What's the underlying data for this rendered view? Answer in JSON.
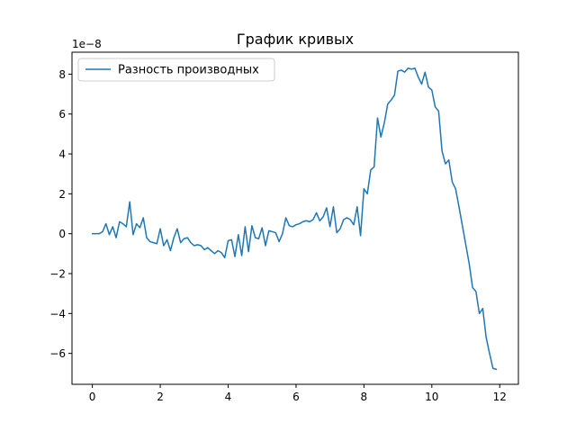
{
  "chart_data": {
    "type": "line",
    "title": "График кривых",
    "xlabel": "",
    "ylabel": "",
    "y_offset_label": "1e−8",
    "xlim": [
      -0.6,
      12.55
    ],
    "ylim": [
      -7.55,
      9.1
    ],
    "x_ticks": [
      0,
      2,
      4,
      6,
      8,
      10,
      12
    ],
    "x_tick_labels": [
      "0",
      "2",
      "4",
      "6",
      "8",
      "10",
      "12"
    ],
    "y_ticks": [
      -6,
      -4,
      -2,
      0,
      2,
      4,
      6,
      8
    ],
    "y_tick_labels": [
      "−6",
      "−4",
      "−2",
      "0",
      "2",
      "4",
      "6",
      "8"
    ],
    "grid": false,
    "legend_position": "upper-left",
    "series": [
      {
        "name": "Разность производных",
        "color": "#1f77b4",
        "x": [
          0,
          0.1,
          0.2,
          0.3,
          0.4,
          0.5,
          0.6,
          0.7,
          0.8,
          0.9,
          1.0,
          1.1,
          1.2,
          1.3,
          1.4,
          1.5,
          1.6,
          1.7,
          1.8,
          1.9,
          2.0,
          2.1,
          2.2,
          2.3,
          2.4,
          2.5,
          2.6,
          2.7,
          2.8,
          2.9,
          3.0,
          3.1,
          3.2,
          3.3,
          3.4,
          3.5,
          3.6,
          3.7,
          3.8,
          3.9,
          4.0,
          4.1,
          4.2,
          4.3,
          4.4,
          4.5,
          4.6,
          4.7,
          4.8,
          4.9,
          5.0,
          5.1,
          5.2,
          5.3,
          5.4,
          5.5,
          5.6,
          5.7,
          5.8,
          5.9,
          6.0,
          6.1,
          6.2,
          6.3,
          6.4,
          6.5,
          6.6,
          6.7,
          6.8,
          6.9,
          7.0,
          7.1,
          7.2,
          7.3,
          7.4,
          7.5,
          7.6,
          7.7,
          7.8,
          7.9,
          8.0,
          8.1,
          8.2,
          8.3,
          8.4,
          8.5,
          8.6,
          8.7,
          8.8,
          8.9,
          9.0,
          9.1,
          9.2,
          9.3,
          9.4,
          9.5,
          9.6,
          9.7,
          9.8,
          9.9,
          10.0,
          10.1,
          10.2,
          10.3,
          10.4,
          10.5,
          10.6,
          10.7,
          10.8,
          10.9,
          11.0,
          11.1,
          11.2,
          11.3,
          11.4,
          11.5,
          11.6,
          11.7,
          11.8,
          11.9
        ],
        "y": [
          0.0,
          0.0,
          0.0,
          0.1,
          0.5,
          -0.05,
          0.35,
          -0.2,
          0.6,
          0.5,
          0.35,
          1.6,
          -0.05,
          0.5,
          0.3,
          0.8,
          -0.2,
          -0.4,
          -0.45,
          -0.5,
          0.25,
          -0.6,
          -0.3,
          -0.85,
          -0.2,
          0.25,
          -0.45,
          -0.25,
          -0.2,
          -0.45,
          -0.6,
          -0.55,
          -0.6,
          -0.8,
          -0.7,
          -0.85,
          -1.0,
          -0.85,
          -0.95,
          -1.2,
          -0.35,
          -0.3,
          -1.15,
          -0.05,
          -1.1,
          0.35,
          -0.9,
          0.4,
          -0.2,
          -0.25,
          0.3,
          -0.6,
          0.15,
          0.1,
          0.05,
          -0.4,
          0.0,
          0.8,
          0.4,
          0.35,
          0.45,
          0.5,
          0.6,
          0.65,
          0.6,
          0.7,
          1.05,
          0.65,
          0.85,
          1.3,
          0.35,
          1.35,
          0.05,
          0.25,
          0.7,
          0.8,
          0.7,
          0.45,
          1.35,
          -0.1,
          2.25,
          2.0,
          3.2,
          3.35,
          5.8,
          4.85,
          5.55,
          6.5,
          6.7,
          6.95,
          8.15,
          8.2,
          8.1,
          8.3,
          8.25,
          8.3,
          7.85,
          7.5,
          8.1,
          7.35,
          7.2,
          6.35,
          6.15,
          4.15,
          3.5,
          3.7,
          2.6,
          2.25,
          1.35,
          0.4,
          -0.55,
          -1.5,
          -2.7,
          -2.9,
          -4.0,
          -3.75,
          -5.2,
          -6.0,
          -6.75,
          -6.8
        ]
      }
    ]
  }
}
